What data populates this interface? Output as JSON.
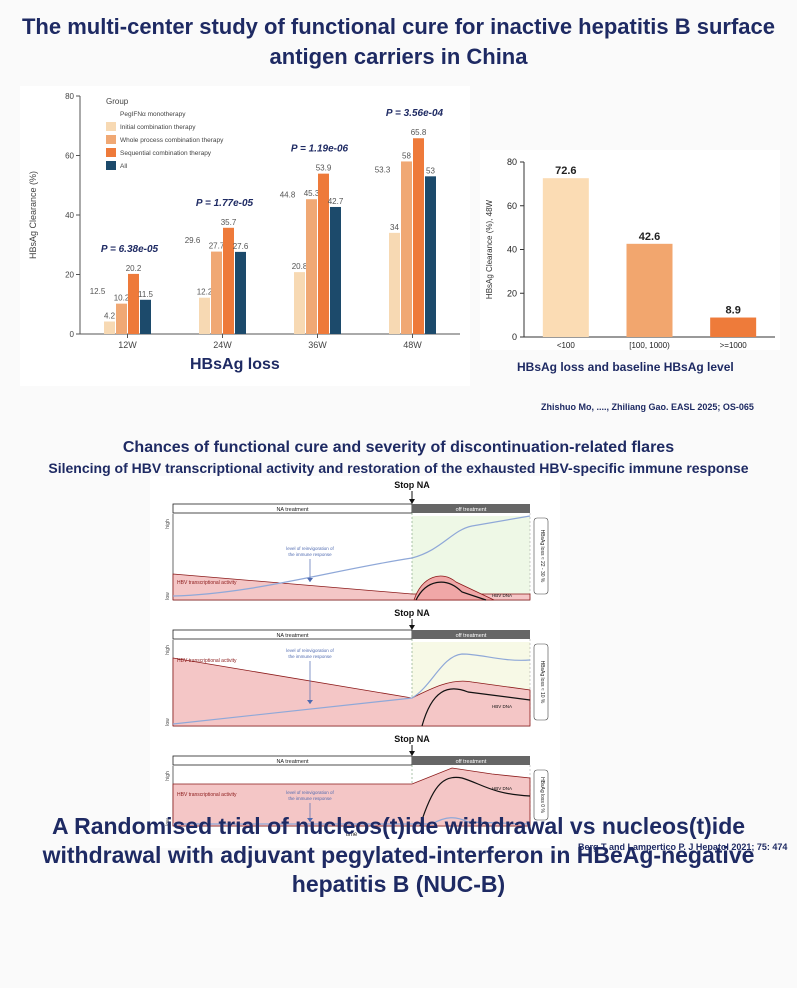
{
  "main_title": "The multi-center study of functional cure for inactive hepatitis B surface antigen carriers in China",
  "chart1": {
    "caption": "HBsAg loss",
    "ylabel": "HBsAg Clearance (%)",
    "yticks": [
      "0",
      "20",
      "40",
      "60",
      "80"
    ],
    "legend_title": "Group",
    "colors": [
      "#f7d9b3",
      "#f0a874",
      "#ee7a3a",
      "#1c4a6b"
    ]
  },
  "chart2": {
    "caption": "HBsAg loss and baseline HBsAg level",
    "ylabel": "HBsAg Clearance (%), 48W",
    "yticks": [
      "0",
      "20",
      "40",
      "60",
      "80"
    ],
    "colors": [
      "#fbdcb4",
      "#f2a66e",
      "#ee7b3a"
    ]
  },
  "chart_data": [
    {
      "type": "bar",
      "categories": [
        "12W",
        "24W",
        "36W",
        "48W"
      ],
      "series": [
        {
          "name": "PegIFNα monotherapy",
          "values": [
            12.5,
            29.6,
            44.8,
            53.3
          ]
        },
        {
          "name": "Initial combination therapy",
          "values": [
            4.2,
            12.2,
            20.8,
            34
          ]
        },
        {
          "name": "Whole process combination therapy",
          "values": [
            10.2,
            27.7,
            45.3,
            58
          ]
        },
        {
          "name": "Sequential combination therapy",
          "values": [
            20.2,
            35.7,
            53.9,
            65.8
          ]
        },
        {
          "name": "All",
          "values": [
            11.5,
            27.6,
            42.7,
            53
          ]
        }
      ],
      "pvalues": [
        "P = 6.38e-05",
        "P = 1.77e-05",
        "P = 1.19e-06",
        "P = 3.56e-04"
      ],
      "ylabel": "HBsAg Clearance (%)",
      "ylim": [
        0,
        80
      ]
    },
    {
      "type": "bar",
      "categories": [
        "<100",
        "[100, 1000)",
        ">=1000"
      ],
      "values": [
        72.6,
        42.6,
        8.9
      ],
      "ylabel": "HBsAg Clearance (%), 48W",
      "ylim": [
        0,
        80
      ]
    }
  ],
  "citation1": "Zhishuo Mo, ...., Zhiliang Gao. EASL 2025; OS-065",
  "section2": {
    "title": "Chances of functional cure and severity of discontinuation-related flares",
    "subtitle": "Silencing of HBV transcriptional activity and restoration of the exhausted HBV-specific immune response",
    "stop_label": "Stop NA",
    "na_label": "NA treatment",
    "off_label": "off treatment",
    "high": "high",
    "low": "low",
    "immune_label_1": "level of reinvigoration of",
    "immune_label_2": "the immune response",
    "transcription_label": "HBV transcriptional activity",
    "dna_label": "HBV DNA",
    "time_label": "time",
    "panels": [
      {
        "side": "HBsAg loss ≈ 22 - 30 %"
      },
      {
        "side": "HBsAg loss ≈ 10 %"
      },
      {
        "side": "HBsAg loss 0 %"
      }
    ]
  },
  "citation2": "Berg T and Lampertico P. J Hepatol 2021; 75: 474",
  "bottom_title": "A Randomised trial of nucleos(t)ide withdrawal vs nucleos(t)ide withdrawal with adjuvant pegylated-interferon in HBeAg-negative hepatitis B (NUC-B)"
}
